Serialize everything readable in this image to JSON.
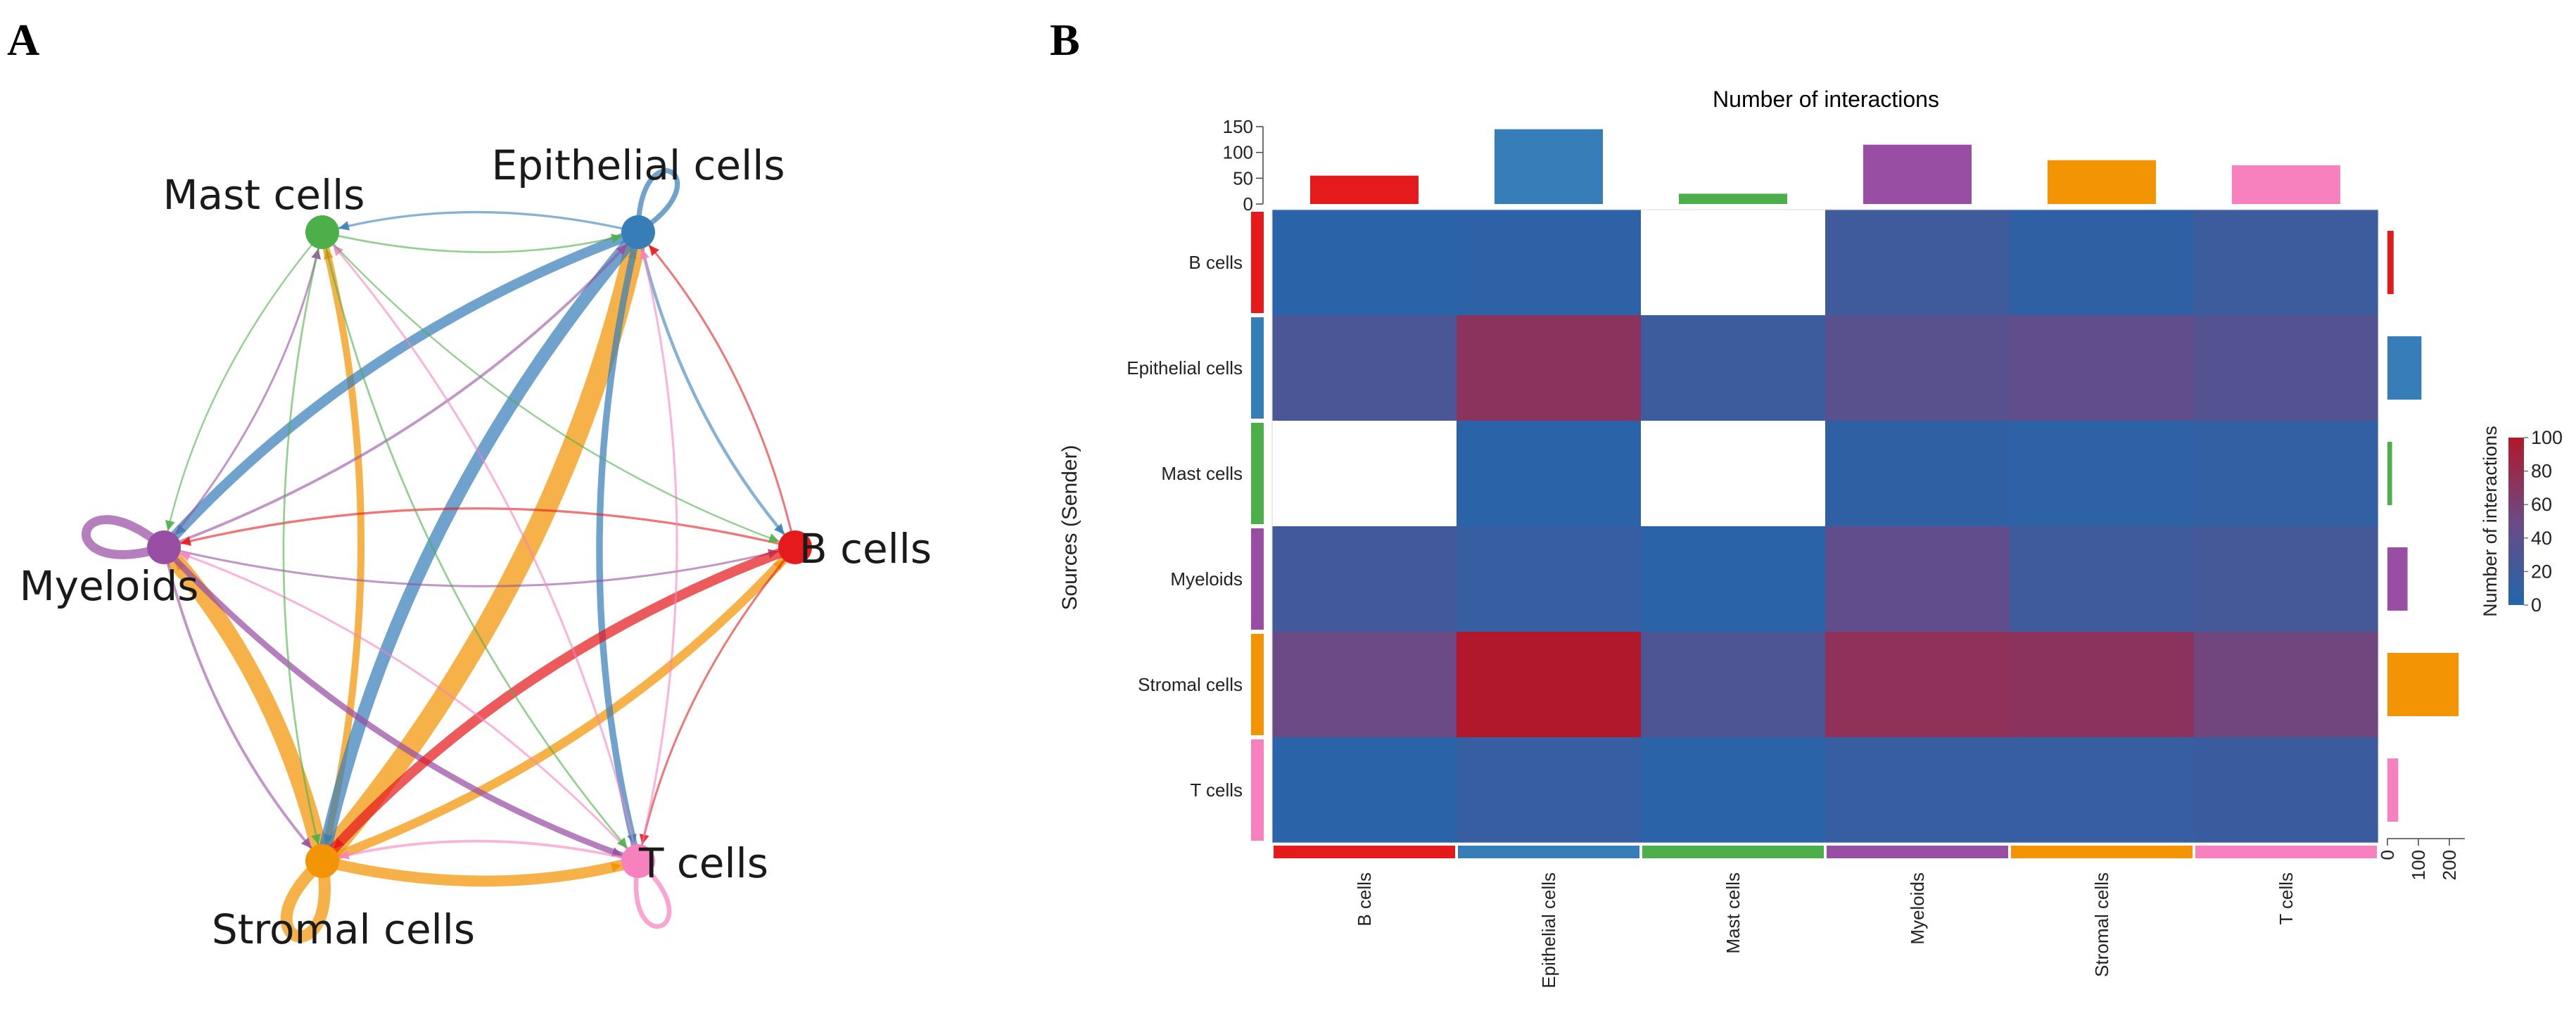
{
  "panels": {
    "a_label": "A",
    "b_label": "B"
  },
  "colors": {
    "B cells": "#e41a1c",
    "Epithelial cells": "#377eb8",
    "Mast cells": "#4daf4a",
    "Myeloids": "#984ea3",
    "Stromal cells": "#f29403",
    "T cells": "#f781bf"
  },
  "chart_data": [
    {
      "type": "network",
      "title": "",
      "nodes": [
        {
          "name": "Mast cells"
        },
        {
          "name": "Epithelial cells"
        },
        {
          "name": "Myeloids"
        },
        {
          "name": "B cells"
        },
        {
          "name": "Stromal cells"
        },
        {
          "name": "T cells"
        }
      ],
      "edges": [
        {
          "source": "Stromal cells",
          "target": "Myeloids",
          "weight": 80
        },
        {
          "source": "Stromal cells",
          "target": "Epithelial cells",
          "weight": 100
        },
        {
          "source": "Stromal cells",
          "target": "Mast cells",
          "weight": 30
        },
        {
          "source": "Stromal cells",
          "target": "B cells",
          "weight": 40
        },
        {
          "source": "Stromal cells",
          "target": "T cells",
          "weight": 50
        },
        {
          "source": "Stromal cells",
          "target": "Stromal cells",
          "weight": 55
        },
        {
          "source": "Epithelial cells",
          "target": "Myeloids",
          "weight": 45
        },
        {
          "source": "Epithelial cells",
          "target": "Stromal cells",
          "weight": 60
        },
        {
          "source": "Epithelial cells",
          "target": "T cells",
          "weight": 28
        },
        {
          "source": "Epithelial cells",
          "target": "B cells",
          "weight": 10
        },
        {
          "source": "Epithelial cells",
          "target": "Mast cells",
          "weight": 6
        },
        {
          "source": "Epithelial cells",
          "target": "Epithelial cells",
          "weight": 20
        },
        {
          "source": "Myeloids",
          "target": "Myeloids",
          "weight": 40
        },
        {
          "source": "Myeloids",
          "target": "T cells",
          "weight": 25
        },
        {
          "source": "Myeloids",
          "target": "Epithelial cells",
          "weight": 8
        },
        {
          "source": "Myeloids",
          "target": "Mast cells",
          "weight": 5
        },
        {
          "source": "Myeloids",
          "target": "B cells",
          "weight": 5
        },
        {
          "source": "Myeloids",
          "target": "Stromal cells",
          "weight": 8
        },
        {
          "source": "B cells",
          "target": "Stromal cells",
          "weight": 45
        },
        {
          "source": "B cells",
          "target": "Myeloids",
          "weight": 6
        },
        {
          "source": "B cells",
          "target": "Epithelial cells",
          "weight": 5
        },
        {
          "source": "B cells",
          "target": "T cells",
          "weight": 5
        },
        {
          "source": "T cells",
          "target": "T cells",
          "weight": 18
        },
        {
          "source": "T cells",
          "target": "Stromal cells",
          "weight": 8
        },
        {
          "source": "T cells",
          "target": "Epithelial cells",
          "weight": 5
        },
        {
          "source": "T cells",
          "target": "Mast cells",
          "weight": 5
        },
        {
          "source": "T cells",
          "target": "Myeloids",
          "weight": 5
        },
        {
          "source": "Mast cells",
          "target": "Epithelial cells",
          "weight": 4
        },
        {
          "source": "Mast cells",
          "target": "Stromal cells",
          "weight": 4
        },
        {
          "source": "Mast cells",
          "target": "T cells",
          "weight": 4
        },
        {
          "source": "Mast cells",
          "target": "Myeloids",
          "weight": 3
        },
        {
          "source": "Mast cells",
          "target": "B cells",
          "weight": 3
        }
      ]
    },
    {
      "type": "heatmap",
      "title": "Number of interactions",
      "ylabel": "Sources (Sender)",
      "row_labels": [
        "B cells",
        "Epithelial cells",
        "Mast cells",
        "Myeloids",
        "Stromal cells",
        "T cells"
      ],
      "col_labels": [
        "B cells",
        "Epithelial cells",
        "Mast cells",
        "Myeloids",
        "Stromal cells",
        "T cells"
      ],
      "values": [
        [
          6,
          8,
          null,
          20,
          10,
          18
        ],
        [
          28,
          72,
          18,
          38,
          42,
          34
        ],
        [
          null,
          6,
          null,
          10,
          8,
          12
        ],
        [
          22,
          14,
          6,
          42,
          20,
          24
        ],
        [
          50,
          100,
          30,
          75,
          72,
          54
        ],
        [
          6,
          14,
          6,
          15,
          15,
          17
        ]
      ],
      "top_bar": {
        "values": [
          55,
          145,
          20,
          115,
          85,
          75
        ],
        "ylim": [
          0,
          150
        ],
        "ticks": [
          "0",
          "50",
          "100",
          "150"
        ]
      },
      "right_bar": {
        "values": [
          20,
          110,
          15,
          65,
          230,
          35
        ],
        "xlim": [
          0,
          250
        ],
        "ticks": [
          "0",
          "100",
          "200"
        ]
      },
      "legend": {
        "title": "Number of interactions",
        "ticks": [
          "0",
          "20",
          "40",
          "60",
          "80",
          "100"
        ],
        "range": [
          0,
          100
        ],
        "low_color": "#2166ac",
        "high_color": "#b2182b"
      }
    }
  ]
}
